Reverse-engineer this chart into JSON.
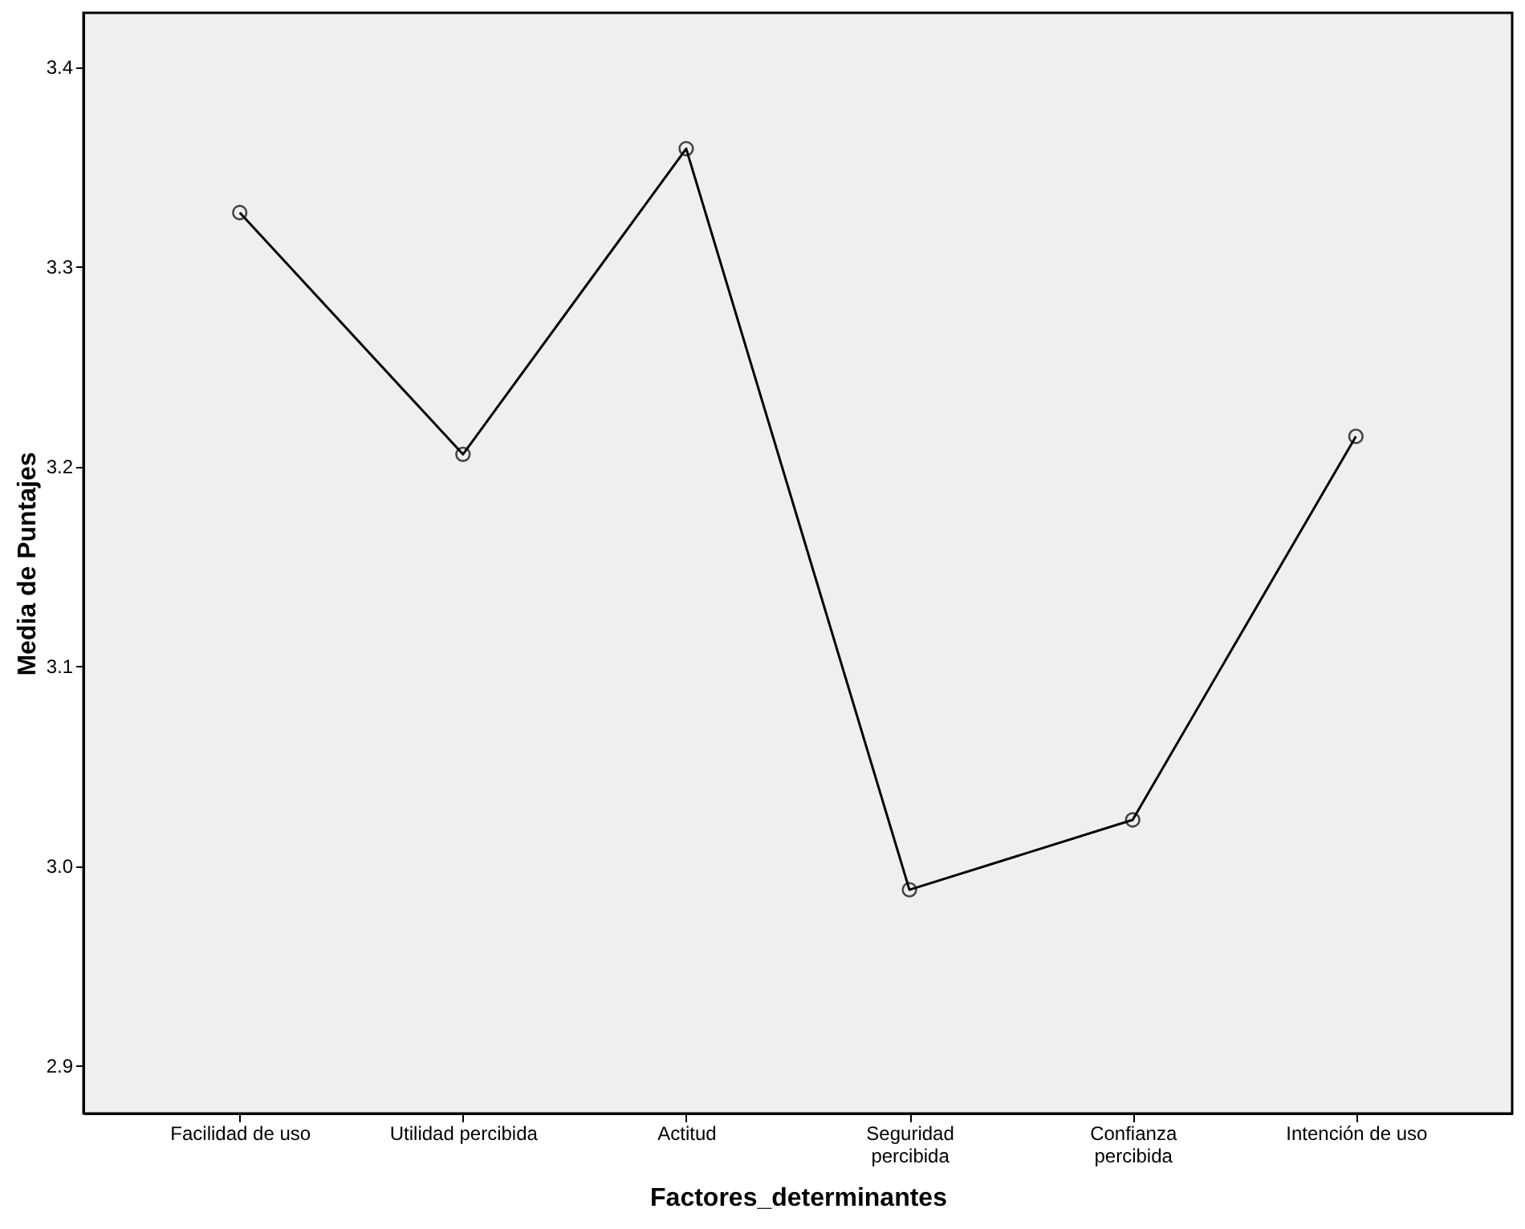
{
  "chart_data": {
    "type": "line",
    "xlabel": "Factores_determinantes",
    "ylabel": "Media de Puntajes",
    "categories": [
      "Facilidad de uso",
      "Utilidad percibida",
      "Actitud",
      "Seguridad\npercibida",
      "Confianza\npercibida",
      "Intención de uso"
    ],
    "series": [
      {
        "color": "#000000",
        "values": [
          3.327,
          3.206,
          3.359,
          2.988,
          3.023,
          3.215
        ]
      }
    ],
    "ylim": [
      2.876,
      3.427
    ],
    "yticks": [
      2.9,
      {
        "value": 3,
        "label": "3.0"
      },
      3.1,
      3.2,
      3.3,
      3.4
    ],
    "grid": false,
    "marker": "circle",
    "line_style": "solid"
  }
}
